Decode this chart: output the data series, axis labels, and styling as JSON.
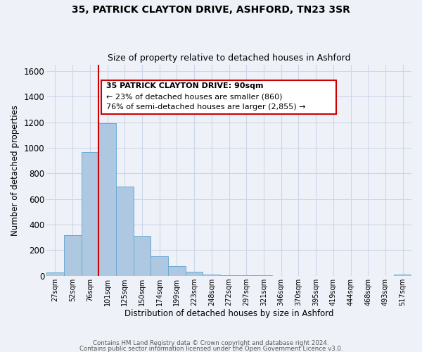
{
  "title": "35, PATRICK CLAYTON DRIVE, ASHFORD, TN23 3SR",
  "subtitle": "Size of property relative to detached houses in Ashford",
  "xlabel": "Distribution of detached houses by size in Ashford",
  "ylabel": "Number of detached properties",
  "bin_labels": [
    "27sqm",
    "52sqm",
    "76sqm",
    "101sqm",
    "125sqm",
    "150sqm",
    "174sqm",
    "199sqm",
    "223sqm",
    "248sqm",
    "272sqm",
    "297sqm",
    "321sqm",
    "346sqm",
    "370sqm",
    "395sqm",
    "419sqm",
    "444sqm",
    "468sqm",
    "493sqm",
    "517sqm"
  ],
  "bar_heights": [
    25,
    320,
    965,
    1195,
    700,
    310,
    150,
    75,
    30,
    10,
    5,
    2,
    1,
    0,
    0,
    0,
    0,
    0,
    0,
    0,
    8
  ],
  "bar_color": "#adc8e0",
  "bar_edge_color": "#6aaad4",
  "ylim": [
    0,
    1650
  ],
  "yticks": [
    0,
    200,
    400,
    600,
    800,
    1000,
    1200,
    1400,
    1600
  ],
  "property_line_x": 3,
  "annotation_title": "35 PATRICK CLAYTON DRIVE: 90sqm",
  "annotation_line1": "← 23% of detached houses are smaller (860)",
  "annotation_line2": "76% of semi-detached houses are larger (2,855) →",
  "annotation_box_color": "#ffffff",
  "annotation_box_edge_color": "#cc0000",
  "vline_color": "#cc0000",
  "background_color": "#eef2f8",
  "grid_color": "#ccd6e8",
  "footer_line1": "Contains HM Land Registry data © Crown copyright and database right 2024.",
  "footer_line2": "Contains public sector information licensed under the Open Government Licence v3.0."
}
